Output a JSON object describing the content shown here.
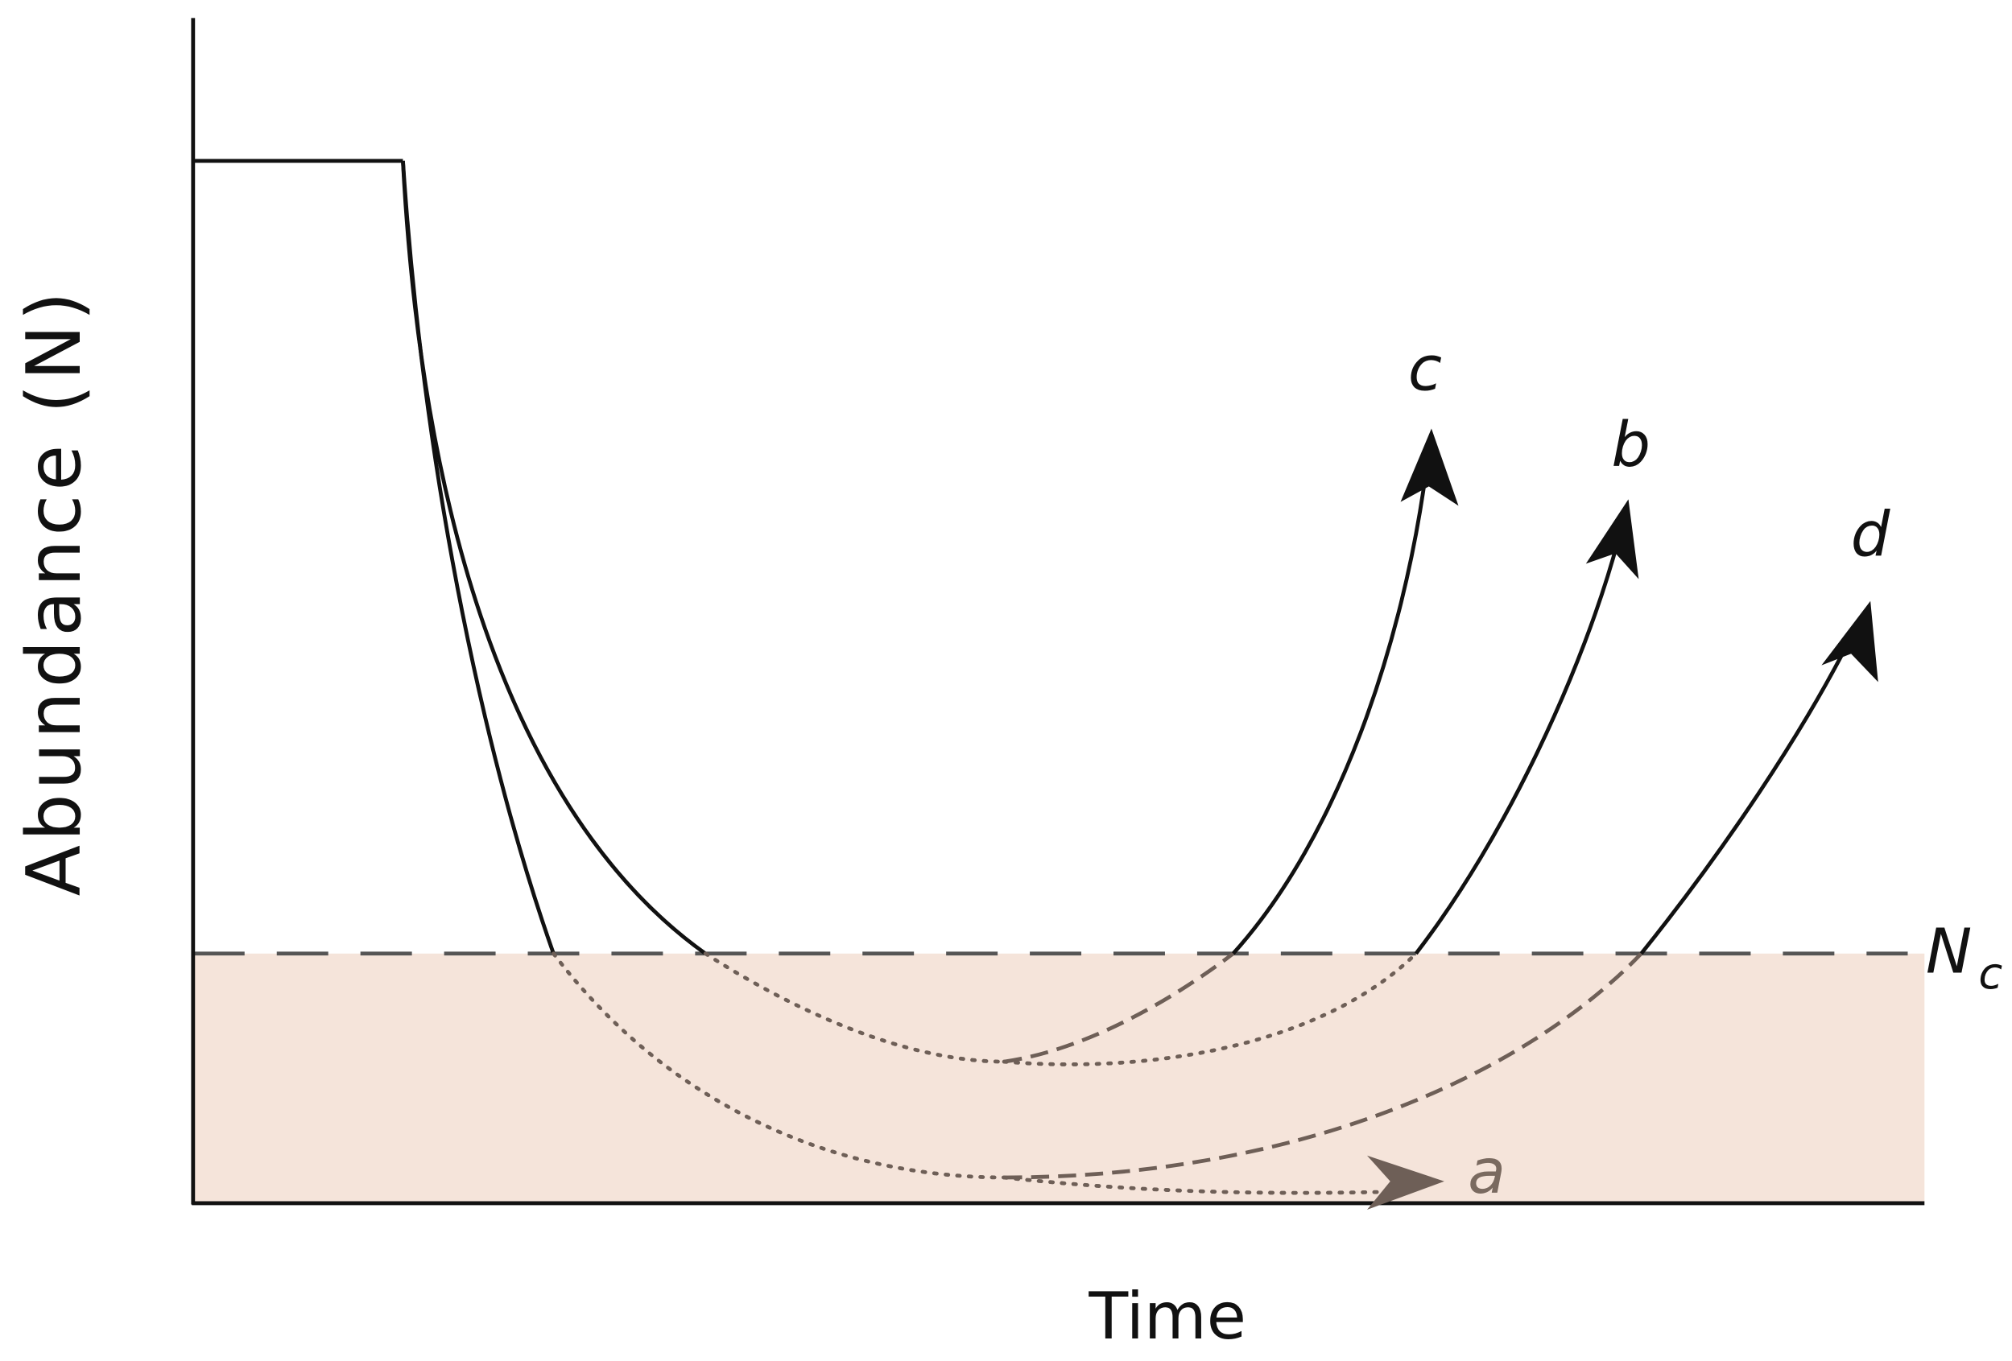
{
  "axes": {
    "y_label": "Abundance (N)",
    "x_label": "Time"
  },
  "threshold": {
    "label": "N",
    "subscript": "c"
  },
  "trajectories": [
    {
      "label": "c"
    },
    {
      "label": "b"
    },
    {
      "label": "d"
    },
    {
      "label": "a"
    }
  ]
}
